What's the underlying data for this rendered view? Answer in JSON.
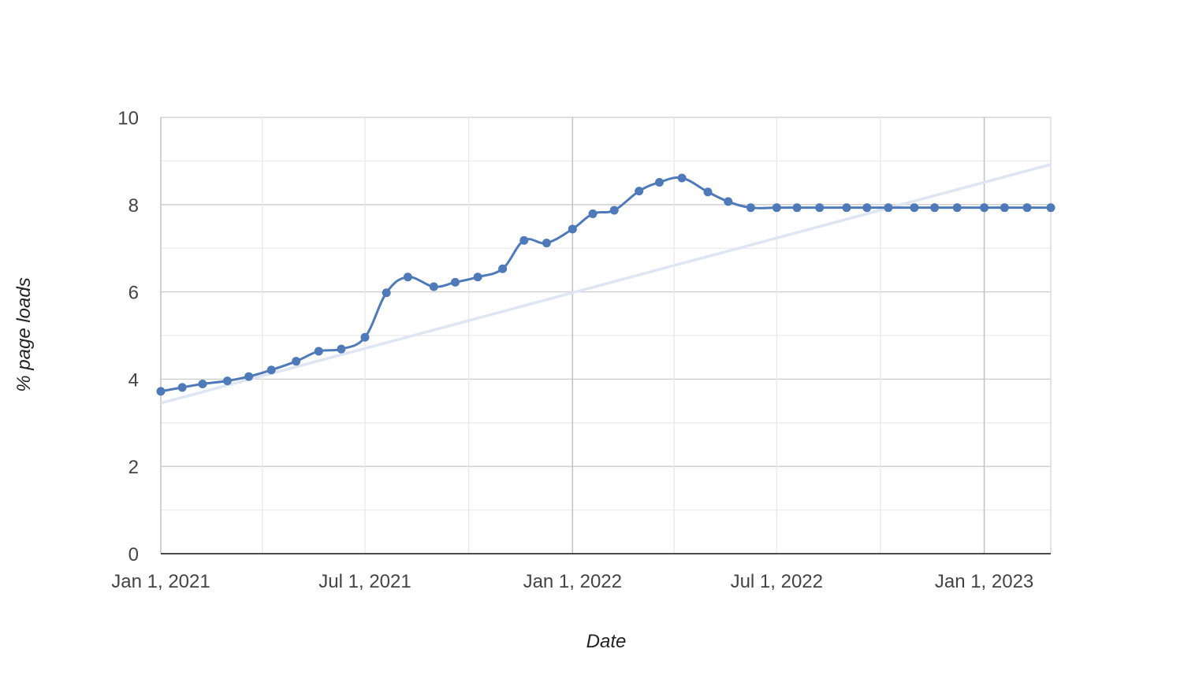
{
  "chart_data": {
    "type": "line",
    "xlabel": "Date",
    "ylabel": "% page loads",
    "ylim": [
      0,
      10
    ],
    "xlim": [
      "2021-01-01",
      "2023-03-01"
    ],
    "y_ticks": [
      "0",
      "2",
      "4",
      "6",
      "8",
      "10"
    ],
    "x_ticks": [
      {
        "date": "2021-01-01",
        "label": "Jan 1, 2021"
      },
      {
        "date": "2021-07-01",
        "label": "Jul 1, 2021"
      },
      {
        "date": "2022-01-01",
        "label": "Jan 1, 2022"
      },
      {
        "date": "2022-07-01",
        "label": "Jul 1, 2022"
      },
      {
        "date": "2023-01-01",
        "label": "Jan 1, 2023"
      }
    ],
    "grid": true,
    "legend": "none",
    "series": [
      {
        "color": "#4e7ab9",
        "x": [
          "2021-01-01",
          "2021-01-20",
          "2021-02-07",
          "2021-03-01",
          "2021-03-20",
          "2021-04-09",
          "2021-05-01",
          "2021-05-21",
          "2021-06-10",
          "2021-07-01",
          "2021-07-20",
          "2021-08-08",
          "2021-08-31",
          "2021-09-19",
          "2021-10-09",
          "2021-10-31",
          "2021-11-19",
          "2021-12-09",
          "2022-01-01",
          "2022-01-19",
          "2022-02-07",
          "2022-03-01",
          "2022-03-19",
          "2022-04-08",
          "2022-05-01",
          "2022-05-19",
          "2022-06-08",
          "2022-07-01",
          "2022-07-19",
          "2022-08-08",
          "2022-09-01",
          "2022-09-19",
          "2022-10-08",
          "2022-10-31",
          "2022-11-18",
          "2022-12-08",
          "2023-01-01",
          "2023-01-19",
          "2023-02-08",
          "2023-03-01"
        ],
        "values": [
          3.72,
          3.81,
          3.89,
          3.96,
          4.06,
          4.21,
          4.41,
          4.64,
          4.69,
          4.96,
          5.98,
          6.34,
          6.12,
          6.22,
          6.34,
          6.53,
          7.18,
          7.12,
          7.44,
          7.79,
          7.87,
          8.31,
          8.51,
          8.61,
          8.29,
          8.07,
          7.93,
          7.93,
          7.93,
          7.93,
          7.93,
          7.93,
          7.93,
          7.93,
          7.93,
          7.93,
          7.93,
          7.93,
          7.93,
          7.93
        ]
      }
    ],
    "trendline": {
      "color": "#dde6f2",
      "start": {
        "x": "2021-01-01",
        "y": 3.45
      },
      "end": {
        "x": "2023-03-01",
        "y": 8.92
      }
    }
  }
}
